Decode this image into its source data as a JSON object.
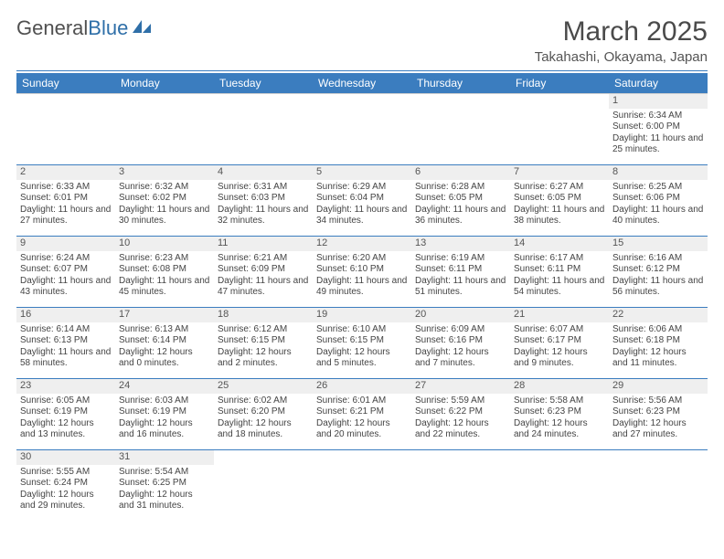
{
  "logo": {
    "part1": "General",
    "part2": "Blue"
  },
  "title": "March 2025",
  "location": "Takahashi, Okayama, Japan",
  "colors": {
    "header_bg": "#3b7dbf",
    "header_fg": "#ffffff",
    "rule": "#3b7dbf",
    "daynum_bg": "#efefef",
    "text": "#444444"
  },
  "weekdays": [
    "Sunday",
    "Monday",
    "Tuesday",
    "Wednesday",
    "Thursday",
    "Friday",
    "Saturday"
  ],
  "weeks": [
    [
      null,
      null,
      null,
      null,
      null,
      null,
      {
        "n": "1",
        "sr": "Sunrise: 6:34 AM",
        "ss": "Sunset: 6:00 PM",
        "dl": "Daylight: 11 hours and 25 minutes."
      }
    ],
    [
      {
        "n": "2",
        "sr": "Sunrise: 6:33 AM",
        "ss": "Sunset: 6:01 PM",
        "dl": "Daylight: 11 hours and 27 minutes."
      },
      {
        "n": "3",
        "sr": "Sunrise: 6:32 AM",
        "ss": "Sunset: 6:02 PM",
        "dl": "Daylight: 11 hours and 30 minutes."
      },
      {
        "n": "4",
        "sr": "Sunrise: 6:31 AM",
        "ss": "Sunset: 6:03 PM",
        "dl": "Daylight: 11 hours and 32 minutes."
      },
      {
        "n": "5",
        "sr": "Sunrise: 6:29 AM",
        "ss": "Sunset: 6:04 PM",
        "dl": "Daylight: 11 hours and 34 minutes."
      },
      {
        "n": "6",
        "sr": "Sunrise: 6:28 AM",
        "ss": "Sunset: 6:05 PM",
        "dl": "Daylight: 11 hours and 36 minutes."
      },
      {
        "n": "7",
        "sr": "Sunrise: 6:27 AM",
        "ss": "Sunset: 6:05 PM",
        "dl": "Daylight: 11 hours and 38 minutes."
      },
      {
        "n": "8",
        "sr": "Sunrise: 6:25 AM",
        "ss": "Sunset: 6:06 PM",
        "dl": "Daylight: 11 hours and 40 minutes."
      }
    ],
    [
      {
        "n": "9",
        "sr": "Sunrise: 6:24 AM",
        "ss": "Sunset: 6:07 PM",
        "dl": "Daylight: 11 hours and 43 minutes."
      },
      {
        "n": "10",
        "sr": "Sunrise: 6:23 AM",
        "ss": "Sunset: 6:08 PM",
        "dl": "Daylight: 11 hours and 45 minutes."
      },
      {
        "n": "11",
        "sr": "Sunrise: 6:21 AM",
        "ss": "Sunset: 6:09 PM",
        "dl": "Daylight: 11 hours and 47 minutes."
      },
      {
        "n": "12",
        "sr": "Sunrise: 6:20 AM",
        "ss": "Sunset: 6:10 PM",
        "dl": "Daylight: 11 hours and 49 minutes."
      },
      {
        "n": "13",
        "sr": "Sunrise: 6:19 AM",
        "ss": "Sunset: 6:11 PM",
        "dl": "Daylight: 11 hours and 51 minutes."
      },
      {
        "n": "14",
        "sr": "Sunrise: 6:17 AM",
        "ss": "Sunset: 6:11 PM",
        "dl": "Daylight: 11 hours and 54 minutes."
      },
      {
        "n": "15",
        "sr": "Sunrise: 6:16 AM",
        "ss": "Sunset: 6:12 PM",
        "dl": "Daylight: 11 hours and 56 minutes."
      }
    ],
    [
      {
        "n": "16",
        "sr": "Sunrise: 6:14 AM",
        "ss": "Sunset: 6:13 PM",
        "dl": "Daylight: 11 hours and 58 minutes."
      },
      {
        "n": "17",
        "sr": "Sunrise: 6:13 AM",
        "ss": "Sunset: 6:14 PM",
        "dl": "Daylight: 12 hours and 0 minutes."
      },
      {
        "n": "18",
        "sr": "Sunrise: 6:12 AM",
        "ss": "Sunset: 6:15 PM",
        "dl": "Daylight: 12 hours and 2 minutes."
      },
      {
        "n": "19",
        "sr": "Sunrise: 6:10 AM",
        "ss": "Sunset: 6:15 PM",
        "dl": "Daylight: 12 hours and 5 minutes."
      },
      {
        "n": "20",
        "sr": "Sunrise: 6:09 AM",
        "ss": "Sunset: 6:16 PM",
        "dl": "Daylight: 12 hours and 7 minutes."
      },
      {
        "n": "21",
        "sr": "Sunrise: 6:07 AM",
        "ss": "Sunset: 6:17 PM",
        "dl": "Daylight: 12 hours and 9 minutes."
      },
      {
        "n": "22",
        "sr": "Sunrise: 6:06 AM",
        "ss": "Sunset: 6:18 PM",
        "dl": "Daylight: 12 hours and 11 minutes."
      }
    ],
    [
      {
        "n": "23",
        "sr": "Sunrise: 6:05 AM",
        "ss": "Sunset: 6:19 PM",
        "dl": "Daylight: 12 hours and 13 minutes."
      },
      {
        "n": "24",
        "sr": "Sunrise: 6:03 AM",
        "ss": "Sunset: 6:19 PM",
        "dl": "Daylight: 12 hours and 16 minutes."
      },
      {
        "n": "25",
        "sr": "Sunrise: 6:02 AM",
        "ss": "Sunset: 6:20 PM",
        "dl": "Daylight: 12 hours and 18 minutes."
      },
      {
        "n": "26",
        "sr": "Sunrise: 6:01 AM",
        "ss": "Sunset: 6:21 PM",
        "dl": "Daylight: 12 hours and 20 minutes."
      },
      {
        "n": "27",
        "sr": "Sunrise: 5:59 AM",
        "ss": "Sunset: 6:22 PM",
        "dl": "Daylight: 12 hours and 22 minutes."
      },
      {
        "n": "28",
        "sr": "Sunrise: 5:58 AM",
        "ss": "Sunset: 6:23 PM",
        "dl": "Daylight: 12 hours and 24 minutes."
      },
      {
        "n": "29",
        "sr": "Sunrise: 5:56 AM",
        "ss": "Sunset: 6:23 PM",
        "dl": "Daylight: 12 hours and 27 minutes."
      }
    ],
    [
      {
        "n": "30",
        "sr": "Sunrise: 5:55 AM",
        "ss": "Sunset: 6:24 PM",
        "dl": "Daylight: 12 hours and 29 minutes."
      },
      {
        "n": "31",
        "sr": "Sunrise: 5:54 AM",
        "ss": "Sunset: 6:25 PM",
        "dl": "Daylight: 12 hours and 31 minutes."
      },
      null,
      null,
      null,
      null,
      null
    ]
  ]
}
